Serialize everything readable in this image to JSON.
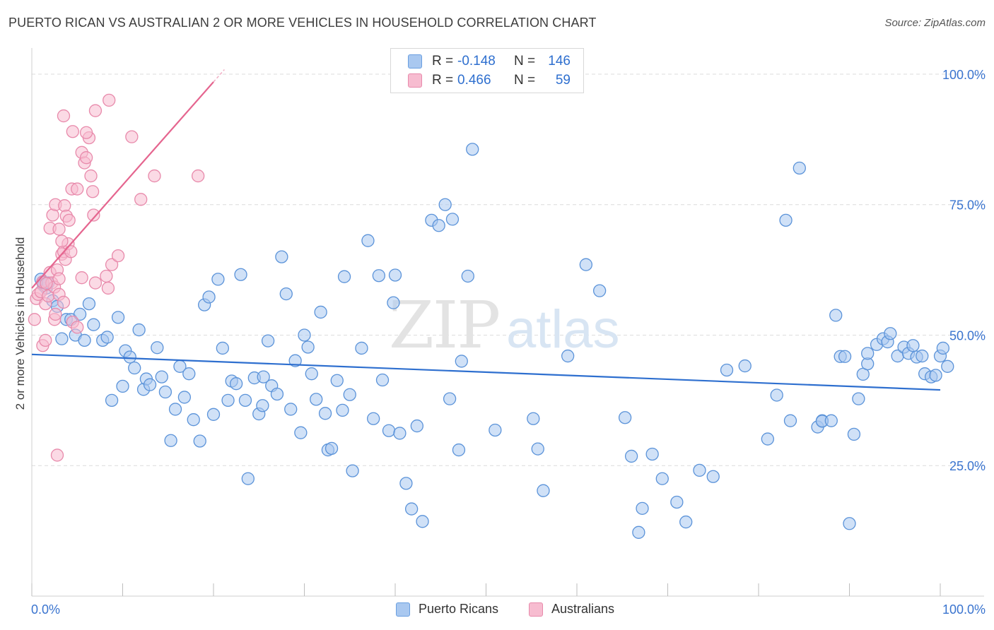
{
  "title": "PUERTO RICAN VS AUSTRALIAN 2 OR MORE VEHICLES IN HOUSEHOLD CORRELATION CHART",
  "source": "Source: ZipAtlas.com",
  "watermark": {
    "zip": "ZIP",
    "atlas": "atlas"
  },
  "legend": {
    "r_label": "R =",
    "n_label": "N =",
    "rows": [
      {
        "r": "-0.148",
        "n": "146",
        "color": "#a9c8f0",
        "border": "#6a9fe0"
      },
      {
        "r": "0.466",
        "n": "59",
        "color": "#f7bcd0",
        "border": "#e88aab"
      }
    ]
  },
  "chart_data": {
    "type": "scatter",
    "title": "PUERTO RICAN VS AUSTRALIAN 2 OR MORE VEHICLES IN HOUSEHOLD CORRELATION CHART",
    "xlabel": "",
    "ylabel": "2 or more Vehicles in Household",
    "xlim": [
      0,
      100
    ],
    "ylim": [
      0,
      105
    ],
    "x_tick_labels": [
      "0.0%",
      "100.0%"
    ],
    "y_tick_labels": [
      "25.0%",
      "50.0%",
      "75.0%",
      "100.0%"
    ],
    "y_tick_values": [
      25,
      50,
      75,
      100
    ],
    "grid": true,
    "legend_position": "bottom-center",
    "series": [
      {
        "name": "Puerto Ricans",
        "color": "#a9c8f0",
        "stroke": "#5b93d9",
        "trend": {
          "x": [
            0,
            100
          ],
          "y": [
            46.3,
            39.5
          ],
          "color": "#2e6fcf"
        },
        "points": [
          [
            1.0,
            60.7
          ],
          [
            1.3,
            59.5
          ],
          [
            1.6,
            59.0
          ],
          [
            1.2,
            60.1
          ],
          [
            1.8,
            60.0
          ],
          [
            2.3,
            56.6
          ],
          [
            2.8,
            55.5
          ],
          [
            3.3,
            49.3
          ],
          [
            3.8,
            53.0
          ],
          [
            4.3,
            53.0
          ],
          [
            4.8,
            50.0
          ],
          [
            5.3,
            54.0
          ],
          [
            5.8,
            49.0
          ],
          [
            6.3,
            56.0
          ],
          [
            6.8,
            52.0
          ],
          [
            7.8,
            49.0
          ],
          [
            8.3,
            49.6
          ],
          [
            8.8,
            37.5
          ],
          [
            9.5,
            53.4
          ],
          [
            10.0,
            40.2
          ],
          [
            10.3,
            47.0
          ],
          [
            10.8,
            45.8
          ],
          [
            11.3,
            43.7
          ],
          [
            11.8,
            51.0
          ],
          [
            12.3,
            39.6
          ],
          [
            12.6,
            41.6
          ],
          [
            13.0,
            40.5
          ],
          [
            13.8,
            47.6
          ],
          [
            14.3,
            42.0
          ],
          [
            14.7,
            39.1
          ],
          [
            15.3,
            29.8
          ],
          [
            15.8,
            35.8
          ],
          [
            16.3,
            44.0
          ],
          [
            16.8,
            38.1
          ],
          [
            17.3,
            42.6
          ],
          [
            17.8,
            33.8
          ],
          [
            18.5,
            29.7
          ],
          [
            19.0,
            55.8
          ],
          [
            19.5,
            57.3
          ],
          [
            20.0,
            34.8
          ],
          [
            20.5,
            60.7
          ],
          [
            21.0,
            47.5
          ],
          [
            21.6,
            37.5
          ],
          [
            22.0,
            41.2
          ],
          [
            22.5,
            40.7
          ],
          [
            23.0,
            61.6
          ],
          [
            23.5,
            37.5
          ],
          [
            23.8,
            22.5
          ],
          [
            24.5,
            41.8
          ],
          [
            25.0,
            34.9
          ],
          [
            25.4,
            36.5
          ],
          [
            26.0,
            48.9
          ],
          [
            26.4,
            40.3
          ],
          [
            27.0,
            38.7
          ],
          [
            27.5,
            65.0
          ],
          [
            28.0,
            57.9
          ],
          [
            28.5,
            35.8
          ],
          [
            29.0,
            45.1
          ],
          [
            29.6,
            31.3
          ],
          [
            30.0,
            50.0
          ],
          [
            30.4,
            47.7
          ],
          [
            30.8,
            42.6
          ],
          [
            31.3,
            37.7
          ],
          [
            31.8,
            54.4
          ],
          [
            32.3,
            35.0
          ],
          [
            32.6,
            28.0
          ],
          [
            33.0,
            28.3
          ],
          [
            33.6,
            41.3
          ],
          [
            34.2,
            35.6
          ],
          [
            34.4,
            61.2
          ],
          [
            35.0,
            38.6
          ],
          [
            35.3,
            24.0
          ],
          [
            36.3,
            47.5
          ],
          [
            37.0,
            68.1
          ],
          [
            37.6,
            34.0
          ],
          [
            38.2,
            61.4
          ],
          [
            38.6,
            41.4
          ],
          [
            39.3,
            31.7
          ],
          [
            39.8,
            56.2
          ],
          [
            40.0,
            61.5
          ],
          [
            40.5,
            31.2
          ],
          [
            41.2,
            21.6
          ],
          [
            41.8,
            16.7
          ],
          [
            42.4,
            32.6
          ],
          [
            43.0,
            14.3
          ],
          [
            44.0,
            72.0
          ],
          [
            44.8,
            71.0
          ],
          [
            45.5,
            75.0
          ],
          [
            46.0,
            37.8
          ],
          [
            46.3,
            72.2
          ],
          [
            47.0,
            28.0
          ],
          [
            47.3,
            45.0
          ],
          [
            48.0,
            61.3
          ],
          [
            48.5,
            85.6
          ],
          [
            51.0,
            31.8
          ],
          [
            55.2,
            34.0
          ],
          [
            55.7,
            28.2
          ],
          [
            56.3,
            20.2
          ],
          [
            59.0,
            46.0
          ],
          [
            61.0,
            63.5
          ],
          [
            62.5,
            58.5
          ],
          [
            65.3,
            34.2
          ],
          [
            66.0,
            26.8
          ],
          [
            66.8,
            12.2
          ],
          [
            67.2,
            16.8
          ],
          [
            68.3,
            27.2
          ],
          [
            69.4,
            22.5
          ],
          [
            71.0,
            18.0
          ],
          [
            72.0,
            14.2
          ],
          [
            73.5,
            24.1
          ],
          [
            75.0,
            22.9
          ],
          [
            76.5,
            43.3
          ],
          [
            78.5,
            44.1
          ],
          [
            81.0,
            30.1
          ],
          [
            82.0,
            38.5
          ],
          [
            83.0,
            72.0
          ],
          [
            83.5,
            33.6
          ],
          [
            84.5,
            82.0
          ],
          [
            86.5,
            32.4
          ],
          [
            87.0,
            33.6
          ],
          [
            87.0,
            33.5
          ],
          [
            88.0,
            33.6
          ],
          [
            88.5,
            53.8
          ],
          [
            89.0,
            45.9
          ],
          [
            89.5,
            45.9
          ],
          [
            90.0,
            13.9
          ],
          [
            90.5,
            31.0
          ],
          [
            91.0,
            37.8
          ],
          [
            91.5,
            42.5
          ],
          [
            92.0,
            44.5
          ],
          [
            92.0,
            46.5
          ],
          [
            93.0,
            48.2
          ],
          [
            93.7,
            49.3
          ],
          [
            94.2,
            48.7
          ],
          [
            94.5,
            50.3
          ],
          [
            95.3,
            46.0
          ],
          [
            96.0,
            47.7
          ],
          [
            96.5,
            46.5
          ],
          [
            97.0,
            48.0
          ],
          [
            97.4,
            45.8
          ],
          [
            98.0,
            46.0
          ],
          [
            98.3,
            42.6
          ],
          [
            99.0,
            42.0
          ],
          [
            99.5,
            42.3
          ],
          [
            100.0,
            46.0
          ],
          [
            100.3,
            47.5
          ],
          [
            100.8,
            44.0
          ],
          [
            25.5,
            42.0
          ]
        ]
      },
      {
        "name": "Australians",
        "color": "#f7bcd0",
        "stroke": "#e88aab",
        "trend": {
          "x": [
            0,
            20.0
          ],
          "y": [
            59.0,
            98.5
          ],
          "color": "#e5658f"
        },
        "points": [
          [
            0.3,
            53.0
          ],
          [
            0.5,
            57.0
          ],
          [
            0.7,
            57.8
          ],
          [
            1.0,
            58.3
          ],
          [
            1.2,
            60.2
          ],
          [
            1.5,
            56.0
          ],
          [
            1.8,
            57.5
          ],
          [
            2.0,
            62.0
          ],
          [
            2.2,
            60.0
          ],
          [
            2.5,
            59.2
          ],
          [
            2.8,
            62.5
          ],
          [
            3.0,
            60.8
          ],
          [
            3.3,
            65.5
          ],
          [
            3.5,
            66.0
          ],
          [
            3.7,
            64.5
          ],
          [
            4.0,
            67.5
          ],
          [
            4.3,
            66.0
          ],
          [
            1.2,
            48.0
          ],
          [
            1.5,
            49.0
          ],
          [
            2.5,
            53.0
          ],
          [
            2.6,
            54.0
          ],
          [
            3.0,
            57.8
          ],
          [
            3.5,
            56.3
          ],
          [
            4.5,
            52.5
          ],
          [
            5.0,
            51.5
          ],
          [
            5.5,
            61.0
          ],
          [
            2.0,
            70.5
          ],
          [
            2.3,
            73.0
          ],
          [
            2.6,
            75.0
          ],
          [
            3.0,
            70.3
          ],
          [
            3.3,
            68.0
          ],
          [
            3.6,
            74.8
          ],
          [
            3.8,
            72.8
          ],
          [
            4.1,
            72.0
          ],
          [
            4.4,
            78.0
          ],
          [
            5.0,
            78.0
          ],
          [
            5.5,
            85.0
          ],
          [
            5.8,
            83.0
          ],
          [
            6.0,
            84.0
          ],
          [
            6.3,
            87.8
          ],
          [
            6.5,
            80.5
          ],
          [
            6.7,
            77.5
          ],
          [
            6.8,
            73.0
          ],
          [
            3.5,
            92.0
          ],
          [
            4.5,
            89.0
          ],
          [
            6.0,
            88.8
          ],
          [
            7.0,
            93.0
          ],
          [
            8.5,
            95.0
          ],
          [
            8.2,
            61.3
          ],
          [
            8.4,
            59.0
          ],
          [
            8.8,
            63.5
          ],
          [
            9.5,
            65.2
          ],
          [
            11.0,
            88.0
          ],
          [
            12.0,
            76.0
          ],
          [
            13.5,
            80.5
          ],
          [
            18.3,
            80.5
          ],
          [
            2.8,
            27.0
          ],
          [
            7.0,
            60.0
          ],
          [
            1.6,
            59.9
          ]
        ]
      }
    ]
  },
  "bottom_legend": [
    {
      "label": "Puerto Ricans",
      "color": "#a9c8f0",
      "border": "#6a9fe0"
    },
    {
      "label": "Australians",
      "color": "#f7bcd0",
      "border": "#e88aab"
    }
  ]
}
